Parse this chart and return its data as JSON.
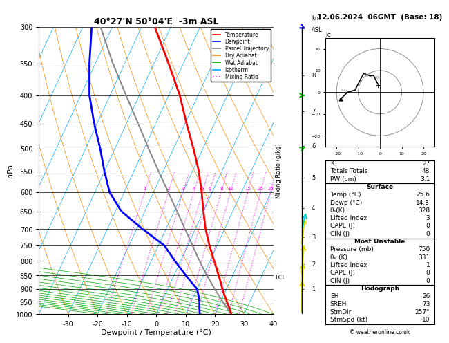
{
  "title": "40°27'N 50°04'E  -3m ASL",
  "date_title": "12.06.2024  06GMT  (Base: 18)",
  "xlabel": "Dewpoint / Temperature (°C)",
  "ylabel_left": "hPa",
  "pressure_ticks": [
    300,
    350,
    400,
    450,
    500,
    550,
    600,
    650,
    700,
    750,
    800,
    850,
    900,
    950,
    1000
  ],
  "temp_xlim": [
    -40,
    40
  ],
  "temp_xticks": [
    -30,
    -20,
    -10,
    0,
    10,
    20,
    30,
    40
  ],
  "bg_color": "#ffffff",
  "sounding_color": "#ff0000",
  "dewpoint_color": "#0000ff",
  "parcel_color": "#888888",
  "dry_adiabat_color": "#ff8800",
  "wet_adiabat_color": "#00aa00",
  "isotherm_color": "#00aaff",
  "mixing_ratio_color": "#ff00ff",
  "legend_entries": [
    "Temperature",
    "Dewpoint",
    "Parcel Trajectory",
    "Dry Adiabat",
    "Wet Adiabat",
    "Isotherm",
    "Mixing Ratio"
  ],
  "legend_colors": [
    "#ff0000",
    "#0000ff",
    "#888888",
    "#ff8800",
    "#00aa00",
    "#00aaff",
    "#ff00ff"
  ],
  "legend_styles": [
    "-",
    "-",
    "-",
    "-",
    "-",
    "-",
    ":"
  ],
  "stats": {
    "K": 27,
    "Totals_Totals": 48,
    "PW_cm": 3.1,
    "Surface_Temp": 25.6,
    "Surface_Dewp": 14.8,
    "Surface_theta_e": 328,
    "Surface_Lifted_Index": 3,
    "Surface_CAPE": 0,
    "Surface_CIN": 0,
    "MU_Pressure": 750,
    "MU_theta_e": 331,
    "MU_Lifted_Index": 1,
    "MU_CAPE": 0,
    "MU_CIN": 0,
    "EH": 26,
    "SREH": 73,
    "StmDir": "257°",
    "StmSpd": 10
  },
  "temp_profile_p": [
    1000,
    975,
    950,
    925,
    900,
    875,
    850,
    800,
    750,
    700,
    650,
    600,
    550,
    500,
    450,
    400,
    350,
    300
  ],
  "temp_profile_t": [
    25.6,
    24.0,
    22.2,
    20.4,
    18.6,
    17.0,
    15.2,
    11.4,
    7.4,
    3.5,
    0.0,
    -3.6,
    -7.8,
    -13.2,
    -19.5,
    -26.2,
    -35.0,
    -45.5
  ],
  "dewp_profile_p": [
    1000,
    975,
    950,
    925,
    900,
    875,
    850,
    800,
    750,
    700,
    650,
    600,
    550,
    500,
    450,
    400,
    350,
    300
  ],
  "dewp_profile_t": [
    14.8,
    13.8,
    12.8,
    11.5,
    10.0,
    7.0,
    4.0,
    -2.0,
    -8.0,
    -18.0,
    -28.0,
    -35.0,
    -40.0,
    -45.0,
    -51.0,
    -57.0,
    -62.0,
    -67.0
  ],
  "parcel_profile_p": [
    1000,
    950,
    900,
    850,
    800,
    750,
    700,
    650,
    600,
    550,
    500,
    450,
    400,
    350,
    300
  ],
  "parcel_profile_t": [
    25.6,
    20.8,
    16.0,
    11.2,
    6.4,
    1.6,
    -3.5,
    -9.0,
    -15.0,
    -21.5,
    -28.5,
    -36.0,
    -44.5,
    -54.0,
    -64.0
  ],
  "mixing_ratio_vals": [
    1,
    2,
    3,
    4,
    5,
    6,
    8,
    10,
    15,
    20,
    25
  ],
  "km_ticks": [
    1,
    2,
    3,
    4,
    5,
    6,
    7,
    8
  ],
  "km_pressures": [
    900,
    812,
    724,
    642,
    565,
    494,
    428,
    368
  ],
  "lcl_pressure": 858,
  "skew": 45.0,
  "wind_p": [
    1000,
    925,
    850,
    750,
    700,
    500,
    400,
    300
  ],
  "wind_dir": [
    185,
    195,
    205,
    215,
    240,
    265,
    270,
    275
  ],
  "wind_spd": [
    3,
    5,
    8,
    8,
    10,
    12,
    15,
    18
  ],
  "wind_colors": [
    "#dddd00",
    "#dddd00",
    "#dddd00",
    "#dddd00",
    "#00cccc",
    "#00cc00",
    "#00cc00",
    "#0000cc"
  ],
  "hodo_u": [
    -0.5,
    -1.5,
    -3.0,
    -4.5,
    -7.5,
    -11.5,
    -15.0,
    -18.0
  ],
  "hodo_v": [
    3.0,
    4.8,
    7.8,
    7.5,
    8.7,
    1.0,
    0.0,
    -3.0
  ]
}
